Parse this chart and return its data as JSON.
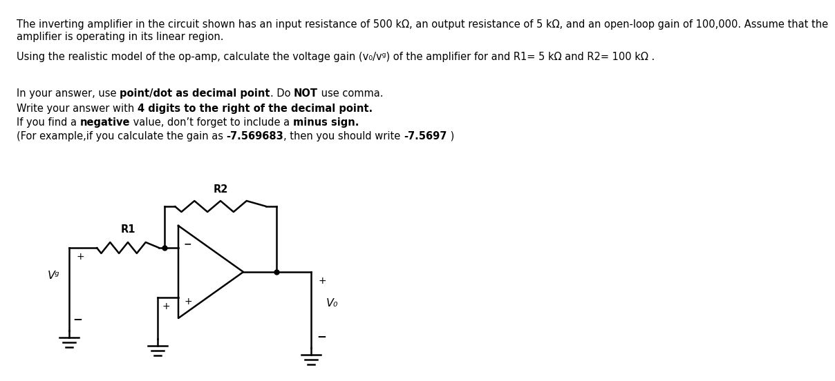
{
  "bg_color": "#ffffff",
  "text_color": "#000000",
  "line1": "The inverting amplifier in the circuit shown has an input resistance of 500 kΩ, an output resistance of 5 kΩ, and an open-loop gain of 100,000. Assume that the",
  "line2": "amplifier is operating in its linear region.",
  "line3": "Using the realistic model of the op-amp, calculate the voltage gain (vo/vg) of the amplifier for and R1= 5 kΩ and R2= 100 kΩ.",
  "fs": 10.5,
  "lw": 1.8
}
